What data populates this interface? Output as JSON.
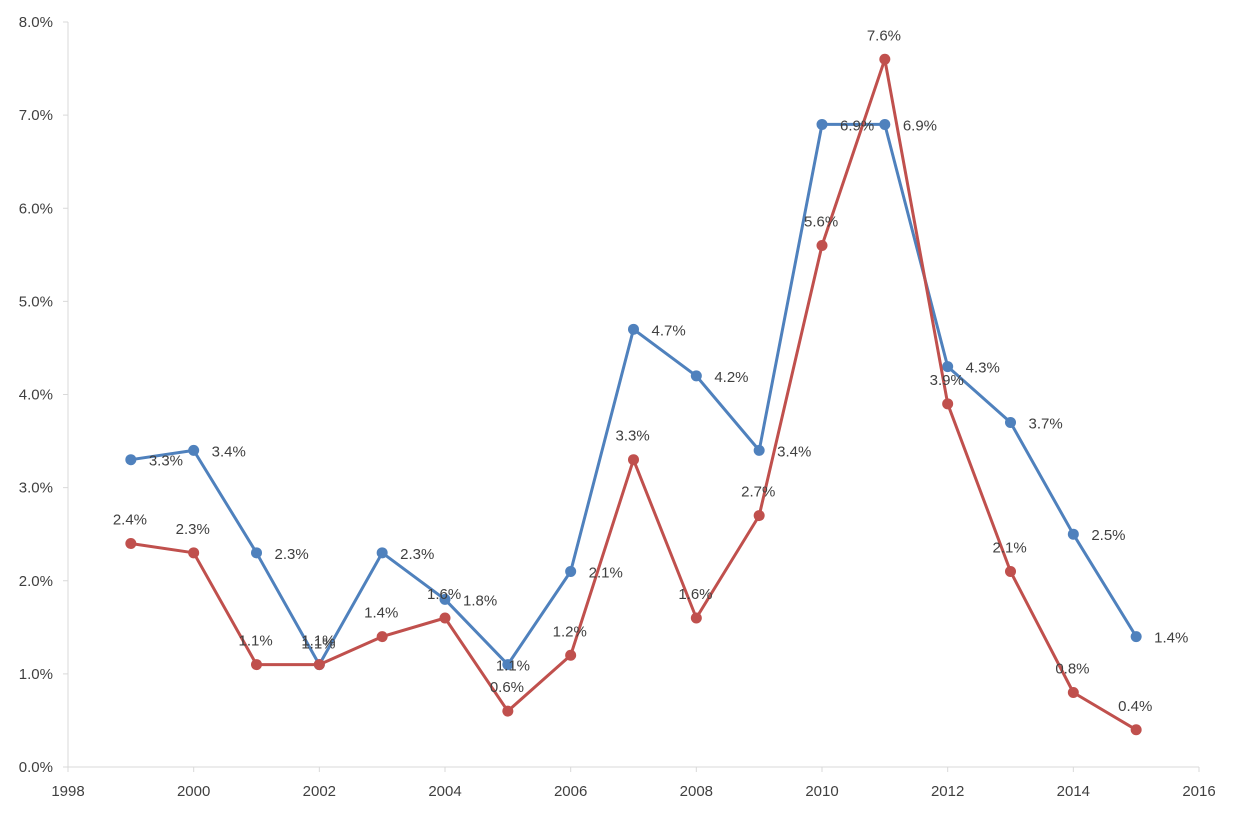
{
  "chart_data": {
    "type": "scatter",
    "title": "",
    "xlabel": "",
    "ylabel": "",
    "xlim": [
      1998,
      2016
    ],
    "ylim": [
      0,
      0.08
    ],
    "x_ticks": [
      "1998",
      "2000",
      "2002",
      "2004",
      "2006",
      "2008",
      "2010",
      "2012",
      "2014",
      "2016"
    ],
    "y_ticks": [
      "0.0%",
      "1.0%",
      "2.0%",
      "3.0%",
      "4.0%",
      "5.0%",
      "6.0%",
      "7.0%",
      "8.0%"
    ],
    "grid": false,
    "legend": "none",
    "series": [
      {
        "color": "#4f81bd",
        "x": [
          1999,
          2000,
          2001,
          2002,
          2003,
          2004,
          2005,
          2006,
          2007,
          2008,
          2009,
          2010,
          2011,
          2012,
          2013,
          2014,
          2015
        ],
        "values": [
          0.033,
          0.034,
          0.023,
          0.011,
          0.023,
          0.018,
          0.011,
          0.021,
          0.047,
          0.042,
          0.034,
          0.069,
          0.069,
          0.043,
          0.037,
          0.025,
          0.014
        ],
        "labels": [
          "3.3%",
          "3.4%",
          "2.3%",
          "1.1%",
          "2.3%",
          "1.8%",
          "1.1%",
          "2.1%",
          "4.7%",
          "4.2%",
          "3.4%",
          "6.9%",
          "6.9%",
          "4.3%",
          "3.7%",
          "2.5%",
          "1.4%"
        ]
      },
      {
        "color": "#c0504d",
        "x": [
          1999,
          2000,
          2001,
          2002,
          2003,
          2004,
          2005,
          2006,
          2007,
          2008,
          2009,
          2010,
          2011,
          2012,
          2013,
          2014,
          2015
        ],
        "values": [
          0.024,
          0.023,
          0.011,
          0.011,
          0.014,
          0.016,
          0.006,
          0.012,
          0.033,
          0.016,
          0.027,
          0.056,
          0.076,
          0.039,
          0.021,
          0.008,
          0.004
        ],
        "labels": [
          "2.4%",
          "2.3%",
          "1.1%",
          "1.1%",
          "1.4%",
          "1.6%",
          "0.6%",
          "1.2%",
          "3.3%",
          "1.6%",
          "2.7%",
          "5.6%",
          "7.6%",
          "3.9%",
          "2.1%",
          "0.8%",
          "0.4%"
        ]
      }
    ]
  }
}
